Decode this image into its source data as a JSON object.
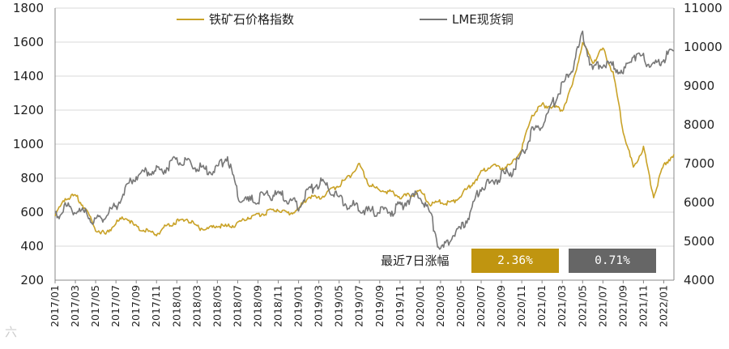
{
  "chart_data": {
    "type": "line",
    "left_axis": {
      "min": 200,
      "max": 1800,
      "ticks": [
        200,
        400,
        600,
        800,
        1000,
        1200,
        1400,
        1600,
        1800
      ]
    },
    "right_axis": {
      "min": 4000,
      "max": 11000,
      "ticks": [
        4000,
        5000,
        6000,
        7000,
        8000,
        9000,
        10000,
        11000
      ]
    },
    "x_range": [
      "2017-01",
      "2022-02"
    ],
    "x_ticks": [
      "2017/01",
      "2017/03",
      "2017/05",
      "2017/07",
      "2017/09",
      "2017/11",
      "2018/01",
      "2018/03",
      "2018/05",
      "2018/07",
      "2018/09",
      "2018/11",
      "2019/01",
      "2019/03",
      "2019/05",
      "2019/07",
      "2019/09",
      "2019/11",
      "2020/01",
      "2020/03",
      "2020/05",
      "2020/07",
      "2020/09",
      "2020/11",
      "2021/01",
      "2021/03",
      "2021/05",
      "2021/07",
      "2021/09",
      "2021/11",
      "2022/01"
    ],
    "grid": "horizontal",
    "legend_placement": "top",
    "series": [
      {
        "name": "铁矿石价格指数",
        "axis": "left",
        "color": "#C9A227",
        "points": [
          [
            "2017-01",
            580
          ],
          [
            "2017-02",
            680
          ],
          [
            "2017-03",
            700
          ],
          [
            "2017-04",
            620
          ],
          [
            "2017-05",
            500
          ],
          [
            "2017-06",
            470
          ],
          [
            "2017-07",
            540
          ],
          [
            "2017-08",
            570
          ],
          [
            "2017-09",
            510
          ],
          [
            "2017-10",
            490
          ],
          [
            "2017-11",
            470
          ],
          [
            "2017-12",
            520
          ],
          [
            "2018-01",
            545
          ],
          [
            "2018-02",
            560
          ],
          [
            "2018-03",
            510
          ],
          [
            "2018-04",
            500
          ],
          [
            "2018-05",
            520
          ],
          [
            "2018-06",
            515
          ],
          [
            "2018-07",
            530
          ],
          [
            "2018-08",
            570
          ],
          [
            "2018-09",
            585
          ],
          [
            "2018-10",
            600
          ],
          [
            "2018-11",
            620
          ],
          [
            "2018-12",
            590
          ],
          [
            "2019-01",
            620
          ],
          [
            "2019-02",
            690
          ],
          [
            "2019-03",
            680
          ],
          [
            "2019-04",
            720
          ],
          [
            "2019-05",
            760
          ],
          [
            "2019-06",
            810
          ],
          [
            "2019-07",
            880
          ],
          [
            "2019-08",
            760
          ],
          [
            "2019-09",
            730
          ],
          [
            "2019-10",
            720
          ],
          [
            "2019-11",
            690
          ],
          [
            "2019-12",
            700
          ],
          [
            "2020-01",
            720
          ],
          [
            "2020-02",
            650
          ],
          [
            "2020-03",
            660
          ],
          [
            "2020-04",
            650
          ],
          [
            "2020-05",
            700
          ],
          [
            "2020-06",
            760
          ],
          [
            "2020-07",
            830
          ],
          [
            "2020-08",
            880
          ],
          [
            "2020-09",
            860
          ],
          [
            "2020-10",
            880
          ],
          [
            "2020-11",
            970
          ],
          [
            "2020-12",
            1170
          ],
          [
            "2021-01",
            1230
          ],
          [
            "2021-02",
            1220
          ],
          [
            "2021-03",
            1200
          ],
          [
            "2021-04",
            1350
          ],
          [
            "2021-05",
            1600
          ],
          [
            "2021-06",
            1480
          ],
          [
            "2021-07",
            1560
          ],
          [
            "2021-08",
            1420
          ],
          [
            "2021-09",
            1080
          ],
          [
            "2021-10",
            860
          ],
          [
            "2021-11",
            980
          ],
          [
            "2021-12",
            690
          ],
          [
            "2022-01",
            880
          ],
          [
            "2022-02",
            940
          ]
        ]
      },
      {
        "name": "LME现货铜",
        "axis": "right",
        "color": "#777777",
        "points": [
          [
            "2017-01",
            5600
          ],
          [
            "2017-02",
            5900
          ],
          [
            "2017-03",
            5800
          ],
          [
            "2017-04",
            5700
          ],
          [
            "2017-05",
            5500
          ],
          [
            "2017-06",
            5700
          ],
          [
            "2017-07",
            5900
          ],
          [
            "2017-08",
            6400
          ],
          [
            "2017-09",
            6700
          ],
          [
            "2017-10",
            6800
          ],
          [
            "2017-11",
            6800
          ],
          [
            "2017-12",
            6900
          ],
          [
            "2018-01",
            7100
          ],
          [
            "2018-02",
            7000
          ],
          [
            "2018-03",
            6900
          ],
          [
            "2018-04",
            6800
          ],
          [
            "2018-05",
            6900
          ],
          [
            "2018-06",
            7200
          ],
          [
            "2018-07",
            6200
          ],
          [
            "2018-08",
            6000
          ],
          [
            "2018-09",
            6100
          ],
          [
            "2018-10",
            6200
          ],
          [
            "2018-11",
            6200
          ],
          [
            "2018-12",
            6100
          ],
          [
            "2019-01",
            5900
          ],
          [
            "2019-02",
            6300
          ],
          [
            "2019-03",
            6500
          ],
          [
            "2019-04",
            6400
          ],
          [
            "2019-05",
            6100
          ],
          [
            "2019-06",
            5900
          ],
          [
            "2019-07",
            5900
          ],
          [
            "2019-08",
            5750
          ],
          [
            "2019-09",
            5800
          ],
          [
            "2019-10",
            5750
          ],
          [
            "2019-11",
            5900
          ],
          [
            "2019-12",
            6100
          ],
          [
            "2020-01",
            6200
          ],
          [
            "2020-02",
            5700
          ],
          [
            "2020-03",
            4700
          ],
          [
            "2020-04",
            5100
          ],
          [
            "2020-05",
            5300
          ],
          [
            "2020-06",
            5800
          ],
          [
            "2020-07",
            6400
          ],
          [
            "2020-08",
            6500
          ],
          [
            "2020-09",
            6700
          ],
          [
            "2020-10",
            6800
          ],
          [
            "2020-11",
            7200
          ],
          [
            "2020-12",
            7800
          ],
          [
            "2021-01",
            8000
          ],
          [
            "2021-02",
            8500
          ],
          [
            "2021-03",
            9000
          ],
          [
            "2021-04",
            9500
          ],
          [
            "2021-05",
            10300
          ],
          [
            "2021-06",
            9400
          ],
          [
            "2021-07",
            9600
          ],
          [
            "2021-08",
            9500
          ],
          [
            "2021-09",
            9300
          ],
          [
            "2021-10",
            9800
          ],
          [
            "2021-11",
            9700
          ],
          [
            "2021-12",
            9500
          ],
          [
            "2022-01",
            9700
          ],
          [
            "2022-02",
            9900
          ]
        ]
      }
    ]
  },
  "stats": {
    "label": "最近7日涨幅",
    "iron_change": "2.36%",
    "copper_change": "0.71%",
    "iron_color": "#C09510",
    "copper_color": "#666666"
  },
  "watermark": "六"
}
